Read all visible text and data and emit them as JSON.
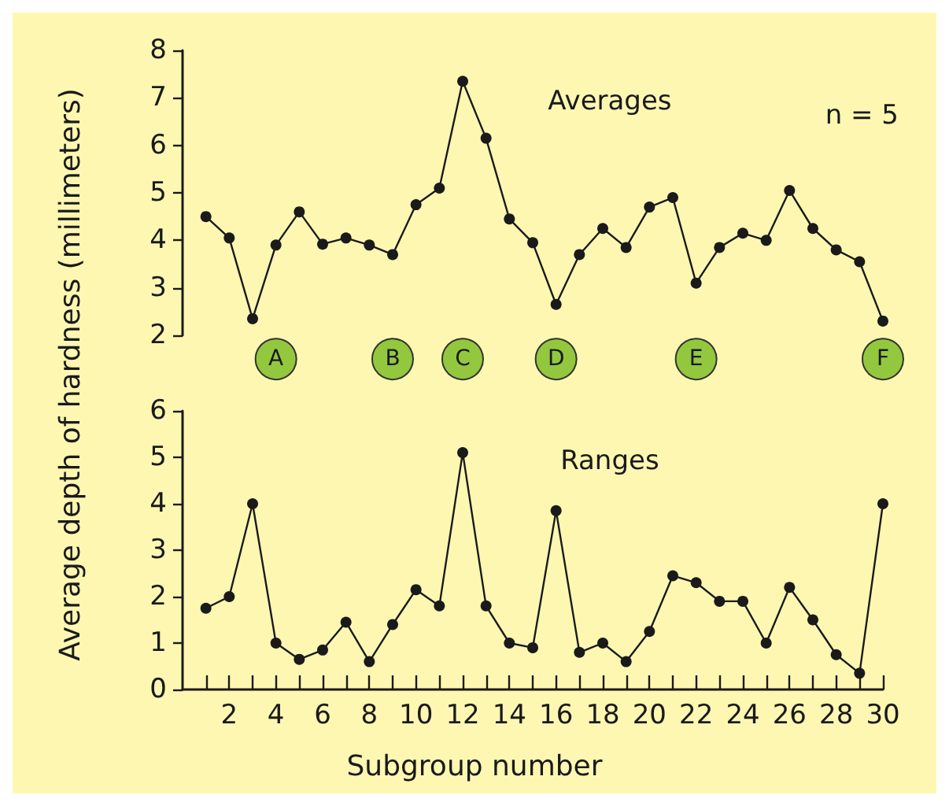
{
  "chart_data": [
    {
      "type": "line",
      "ylabel": "Average depth of hardness (millimeters)",
      "x": [
        1,
        2,
        3,
        4,
        5,
        6,
        7,
        8,
        9,
        10,
        11,
        12,
        13,
        14,
        15,
        16,
        17,
        18,
        19,
        20,
        21,
        22,
        23,
        24,
        25,
        26,
        27,
        28,
        29,
        30
      ],
      "series": [
        {
          "name": "Averages",
          "color": "#1a1a1a",
          "values": [
            4.5,
            4.05,
            2.35,
            3.9,
            4.6,
            3.92,
            4.05,
            3.9,
            3.7,
            4.75,
            5.1,
            7.35,
            6.15,
            4.45,
            3.95,
            2.65,
            3.7,
            4.25,
            3.85,
            4.7,
            4.9,
            3.1,
            3.85,
            4.15,
            4.0,
            5.05,
            4.25,
            3.8,
            3.55,
            2.3
          ]
        }
      ],
      "annotations": [
        "n = 5",
        {
          "text": "A",
          "x": 4,
          "y": 1.5
        },
        {
          "text": "B",
          "x": 9,
          "y": 1.5
        },
        {
          "text": "C",
          "x": 12,
          "y": 1.5
        },
        {
          "text": "D",
          "x": 16,
          "y": 1.5
        },
        {
          "text": "E",
          "x": 22,
          "y": 1.5
        },
        {
          "text": "F",
          "x": 30,
          "y": 1.5
        }
      ],
      "xlim": [
        0,
        30
      ],
      "ylim": [
        2,
        8
      ],
      "yticks": [
        2,
        3,
        4,
        5,
        6,
        7,
        8
      ],
      "tick_labels": "y",
      "grid": false,
      "legend": false,
      "marker": "circle",
      "line_style": "solid"
    },
    {
      "type": "line",
      "xlabel": "Subgroup number",
      "x": [
        1,
        2,
        3,
        4,
        5,
        6,
        7,
        8,
        9,
        10,
        11,
        12,
        13,
        14,
        15,
        16,
        17,
        18,
        19,
        20,
        21,
        22,
        23,
        24,
        25,
        26,
        27,
        28,
        29,
        30
      ],
      "series": [
        {
          "name": "Ranges",
          "color": "#1a1a1a",
          "values": [
            1.75,
            2.0,
            4.0,
            1.0,
            0.65,
            0.85,
            1.45,
            0.6,
            1.4,
            2.15,
            1.8,
            5.1,
            1.8,
            1.0,
            0.9,
            3.85,
            0.8,
            1.0,
            0.6,
            1.25,
            2.45,
            2.3,
            1.9,
            1.9,
            1.0,
            2.2,
            1.5,
            0.75,
            0.35,
            4.0
          ]
        }
      ],
      "xlim": [
        0,
        30
      ],
      "ylim": [
        0,
        6
      ],
      "yticks": [
        0,
        1,
        2,
        3,
        4,
        5,
        6
      ],
      "xticks": [
        {
          "value": 1,
          "label": null
        },
        2,
        {
          "value": 3,
          "label": null
        },
        4,
        {
          "value": 5,
          "label": null
        },
        6,
        {
          "value": 7,
          "label": null
        },
        8,
        {
          "value": 9,
          "label": null
        },
        10,
        {
          "value": 11,
          "label": null
        },
        12,
        {
          "value": 13,
          "label": null
        },
        14,
        {
          "value": 15,
          "label": null
        },
        16,
        {
          "value": 17,
          "label": null
        },
        18,
        {
          "value": 19,
          "label": null
        },
        20,
        {
          "value": 21,
          "label": null
        },
        22,
        {
          "value": 23,
          "label": null
        },
        24,
        {
          "value": 25,
          "label": null
        },
        26,
        {
          "value": 27,
          "label": null
        },
        28,
        {
          "value": 29,
          "label": null
        },
        30
      ],
      "grid": false,
      "legend": false,
      "marker": "circle",
      "line_style": "solid"
    }
  ]
}
